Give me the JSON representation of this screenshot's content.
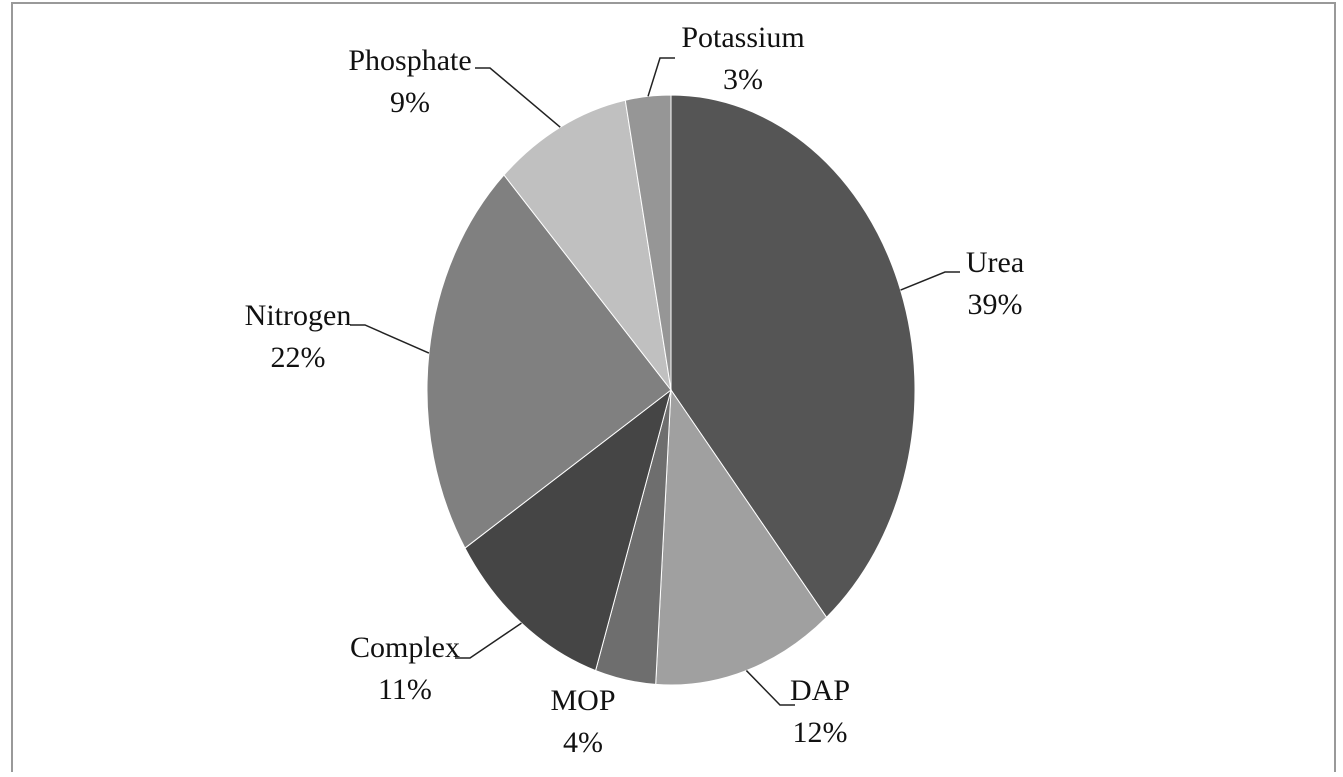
{
  "chart_data": {
    "type": "pie",
    "categories": [
      "Urea",
      "DAP",
      "MOP",
      "Complex",
      "Nitrogen",
      "Phosphate",
      "Potassium"
    ],
    "values": [
      39,
      12,
      4,
      11,
      22,
      9,
      3
    ],
    "value_labels": [
      "39%",
      "12%",
      "4%",
      "11%",
      "22%",
      "9%",
      "3%"
    ],
    "colors": [
      "#555555",
      "#a0a0a0",
      "#6e6e6e",
      "#454545",
      "#808080",
      "#c0c0c0",
      "#969696"
    ]
  }
}
